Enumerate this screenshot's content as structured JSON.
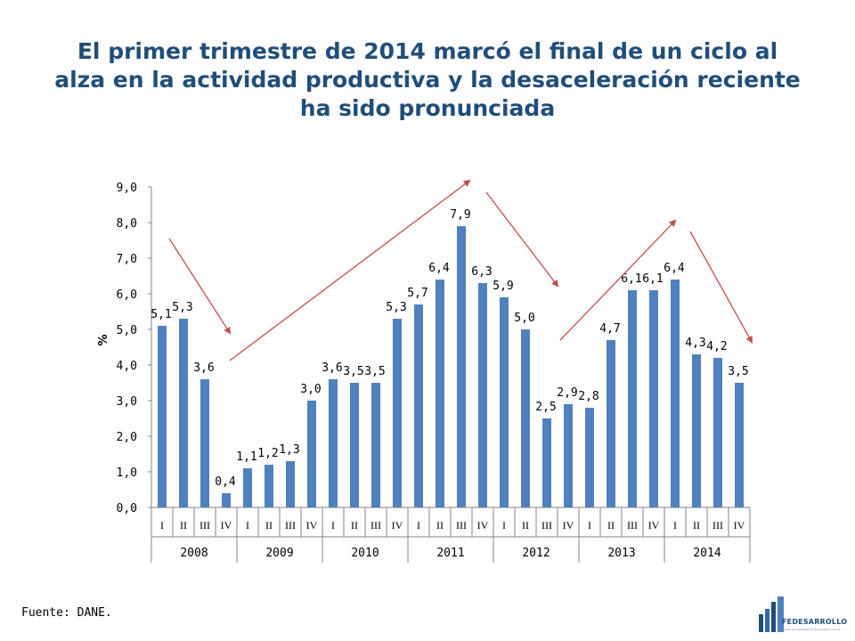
{
  "title": "El primer trimestre de 2014 marcó el final de un ciclo al alza en la actividad productiva y la desaceleración reciente ha sido pronunciada",
  "source": "Fuente: DANE.",
  "logo": {
    "name": "FEDESARROLLO",
    "subtitle": "Centro de Investigación Económica y Social"
  },
  "colors": {
    "title": "#1f4e79",
    "bar": "#4f81bd",
    "arrow": "#c0504d"
  },
  "chart_data": {
    "type": "bar",
    "ylabel": "%",
    "ylim": [
      0,
      9
    ],
    "yticks": [
      "0,0",
      "1,0",
      "2,0",
      "3,0",
      "4,0",
      "5,0",
      "6,0",
      "7,0",
      "8,0",
      "9,0"
    ],
    "quarters": [
      "I",
      "II",
      "III",
      "IV"
    ],
    "years": [
      "2008",
      "2009",
      "2010",
      "2011",
      "2012",
      "2013",
      "2014"
    ],
    "values": [
      5.1,
      5.3,
      3.6,
      0.4,
      1.1,
      1.2,
      1.3,
      3.0,
      3.6,
      3.5,
      3.5,
      5.3,
      5.7,
      6.4,
      7.9,
      6.3,
      5.9,
      5.0,
      2.5,
      2.9,
      2.8,
      4.7,
      6.1,
      6.1,
      6.4,
      4.3,
      4.2,
      3.5
    ],
    "labels": [
      "5,1",
      "5,3",
      "3,6",
      "0,4",
      "1,1",
      "1,2",
      "1,3",
      "3,0",
      "3,6",
      "3,5",
      "3,5",
      "5,3",
      "5,7",
      "6,4",
      "7,9",
      "6,3",
      "5,9",
      "5,0",
      "2,5",
      "2,9",
      "2,8",
      "4,7",
      "6,1",
      "6,1",
      "6,4",
      "4,3",
      "4,2",
      "3,5"
    ],
    "grid": false,
    "legend": "none"
  }
}
